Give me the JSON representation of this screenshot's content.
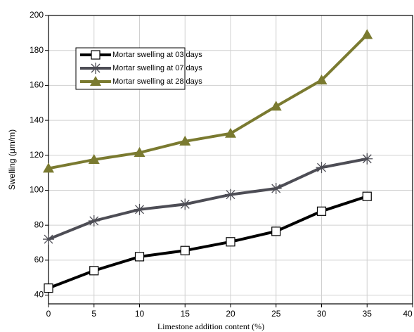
{
  "chart_data": {
    "type": "line",
    "x_label": "Limestone addition content (%)",
    "y_label": "Swelling (μm/m)",
    "x": [
      0,
      5,
      10,
      15,
      20,
      25,
      30,
      35
    ],
    "series": [
      {
        "name": "Mortar swelling at 03 days",
        "color": "#000000",
        "marker": "square",
        "values": [
          44,
          54,
          62,
          65.5,
          70.5,
          76.5,
          88,
          96.5
        ]
      },
      {
        "name": "Mortar swelling at 07 days",
        "color": "#4d4d55",
        "marker": "asterisk",
        "values": [
          72,
          82.5,
          89,
          92,
          97.5,
          101,
          113,
          118
        ]
      },
      {
        "name": "Mortar swelling at 28 days",
        "color": "#7a7a30",
        "marker": "triangle",
        "values": [
          112.5,
          117.5,
          121.5,
          128,
          132.5,
          148,
          163,
          189
        ]
      }
    ],
    "xlim": [
      0,
      40
    ],
    "xticks": [
      0,
      5,
      10,
      15,
      20,
      25,
      30,
      35,
      40
    ],
    "ylim": [
      35,
      200
    ],
    "yticks": [
      40,
      60,
      80,
      100,
      120,
      140,
      160,
      180,
      200
    ],
    "grid": true,
    "legend": "upper-left"
  }
}
